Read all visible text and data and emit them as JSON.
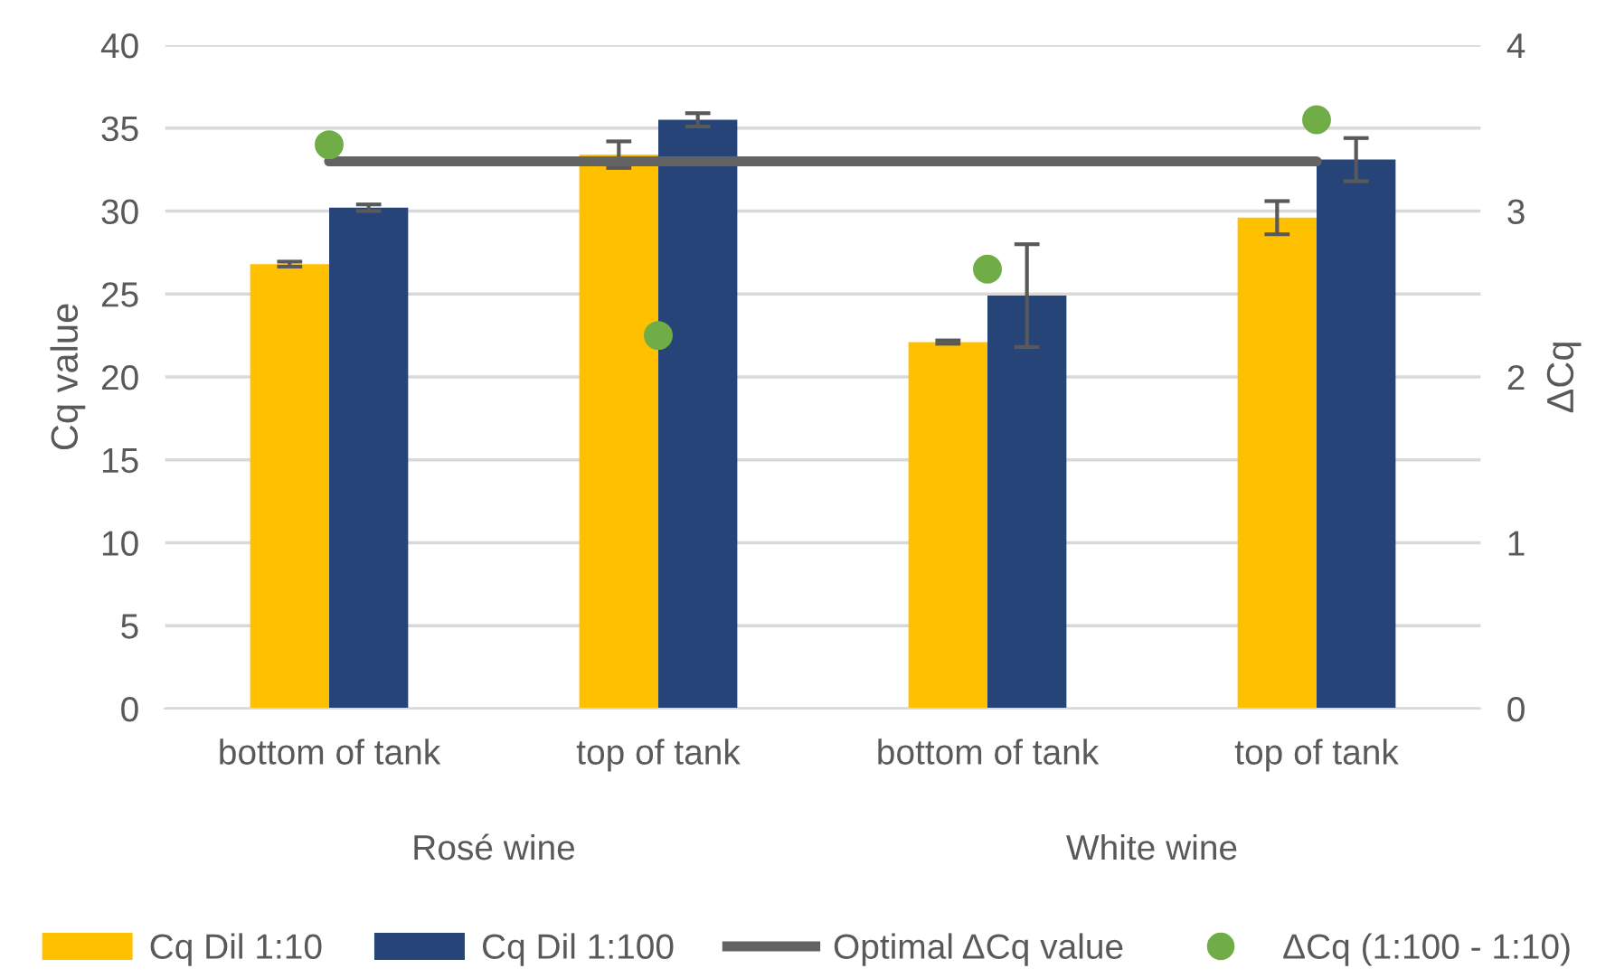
{
  "chart_data": {
    "type": "bar",
    "categories": [
      "bottom of tank",
      "top of tank",
      "bottom of tank",
      "top of tank"
    ],
    "series": [
      {
        "name": "Cq Dil 1:10",
        "color": "#ffc000",
        "values": [
          26.8,
          33.4,
          22.1,
          29.6
        ],
        "errors": [
          0.15,
          0.8,
          0.1,
          1.0
        ]
      },
      {
        "name": "Cq Dil 1:100",
        "color": "#264478",
        "values": [
          30.2,
          35.5,
          24.9,
          33.1
        ],
        "errors": [
          0.2,
          0.4,
          3.1,
          1.3
        ]
      },
      {
        "name": "Optimal ΔCq value",
        "color": "#636363",
        "type": "line",
        "axis": "y2",
        "values": [
          3.3,
          3.3,
          3.3,
          3.3
        ]
      },
      {
        "name": "ΔCq (1:100 - 1:10)",
        "color": "#70ad47",
        "type": "scatter",
        "axis": "y2",
        "marker": "circle",
        "values": [
          3.4,
          2.25,
          2.65,
          3.55
        ]
      }
    ],
    "ylabel": "Cq value",
    "y2label": "ΔCq",
    "ylim": [
      0,
      40
    ],
    "yticks": [
      0,
      5,
      10,
      15,
      20,
      25,
      30,
      35,
      40
    ],
    "y2lim": [
      0,
      4
    ],
    "y2ticks": [
      0,
      1,
      2,
      3,
      4
    ],
    "annotations": [
      "Rosé wine",
      "White wine"
    ],
    "grid": "y",
    "legend": "bottom"
  }
}
